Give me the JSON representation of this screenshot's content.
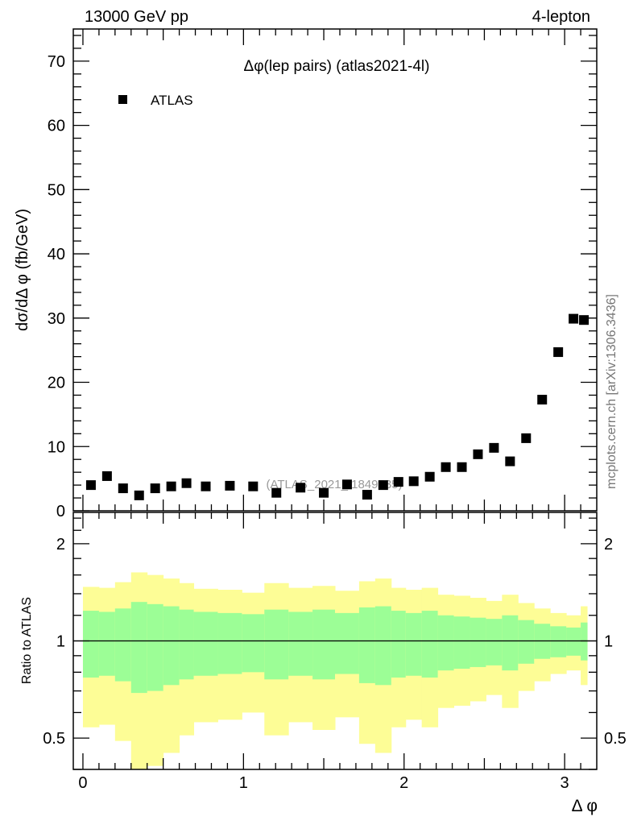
{
  "header": {
    "left": "13000 GeV pp",
    "right": "4-lepton"
  },
  "side_label": "mcplots.cern.ch [arXiv:1306.3436]",
  "watermark": "(ATLAS_2021_I1849535)",
  "colors": {
    "yellow_band": "#fdfd96",
    "green_band": "#9cfe96",
    "marker": "#000000"
  },
  "chart_data": [
    {
      "type": "scatter",
      "title": "Δφ(lep pairs) (atlas2021-4l)",
      "xlabel": "Δ φ",
      "ylabel": "dσ/dΔ φ (fb/GeV)",
      "xlim": [
        -0.06,
        3.2
      ],
      "ylim": [
        0,
        75
      ],
      "yticks": [
        0,
        10,
        20,
        30,
        40,
        50,
        60,
        70
      ],
      "xticks": [
        0,
        1,
        2,
        3
      ],
      "legend": {
        "entries": [
          "ATLAS"
        ],
        "placement": "top-left"
      },
      "series": [
        {
          "name": "ATLAS",
          "bin_edges": [
            0,
            0.1,
            0.2,
            0.3,
            0.4,
            0.5,
            0.6,
            0.69,
            0.84,
            0.99,
            1.13,
            1.28,
            1.43,
            1.57,
            1.72,
            1.82,
            1.92,
            2.01,
            2.11,
            2.21,
            2.31,
            2.41,
            2.51,
            2.61,
            2.71,
            2.81,
            2.91,
            3.01,
            3.1,
            3.14
          ],
          "values": [
            4.0,
            5.4,
            3.5,
            2.4,
            3.5,
            3.8,
            4.3,
            3.8,
            3.9,
            3.8,
            2.8,
            3.6,
            2.8,
            4.1,
            2.5,
            4.0,
            4.5,
            4.6,
            5.3,
            6.8,
            6.8,
            8.8,
            9.8,
            7.7,
            11.3,
            17.3,
            24.7,
            29.9,
            29.7
          ]
        }
      ]
    },
    {
      "type": "area",
      "ylabel": "Ratio to ATLAS",
      "xlabel": "Δ φ",
      "yscale": "log",
      "ylim": [
        0.4,
        2.5
      ],
      "yticks": [
        0.5,
        1,
        2
      ],
      "xticks": [
        0,
        1,
        2,
        3
      ],
      "reference_line": 1,
      "bands": {
        "yellow_hi": [
          1.47,
          1.46,
          1.52,
          1.63,
          1.6,
          1.56,
          1.51,
          1.45,
          1.44,
          1.41,
          1.51,
          1.46,
          1.48,
          1.43,
          1.53,
          1.56,
          1.46,
          1.44,
          1.46,
          1.39,
          1.38,
          1.36,
          1.33,
          1.39,
          1.31,
          1.26,
          1.22,
          1.2,
          1.28
        ],
        "green_hi": [
          1.24,
          1.23,
          1.26,
          1.32,
          1.3,
          1.28,
          1.25,
          1.23,
          1.22,
          1.21,
          1.25,
          1.23,
          1.25,
          1.22,
          1.27,
          1.28,
          1.24,
          1.22,
          1.24,
          1.2,
          1.19,
          1.18,
          1.17,
          1.2,
          1.16,
          1.13,
          1.11,
          1.1,
          1.14
        ],
        "green_lo": [
          0.77,
          0.78,
          0.75,
          0.69,
          0.7,
          0.73,
          0.76,
          0.78,
          0.79,
          0.8,
          0.76,
          0.78,
          0.76,
          0.79,
          0.74,
          0.73,
          0.77,
          0.78,
          0.77,
          0.81,
          0.82,
          0.83,
          0.84,
          0.81,
          0.85,
          0.88,
          0.89,
          0.9,
          0.87
        ],
        "yellow_lo": [
          0.54,
          0.55,
          0.49,
          0.38,
          0.41,
          0.45,
          0.51,
          0.56,
          0.57,
          0.6,
          0.51,
          0.56,
          0.53,
          0.58,
          0.48,
          0.45,
          0.54,
          0.57,
          0.54,
          0.62,
          0.63,
          0.65,
          0.68,
          0.62,
          0.7,
          0.75,
          0.79,
          0.81,
          0.73
        ]
      }
    }
  ]
}
